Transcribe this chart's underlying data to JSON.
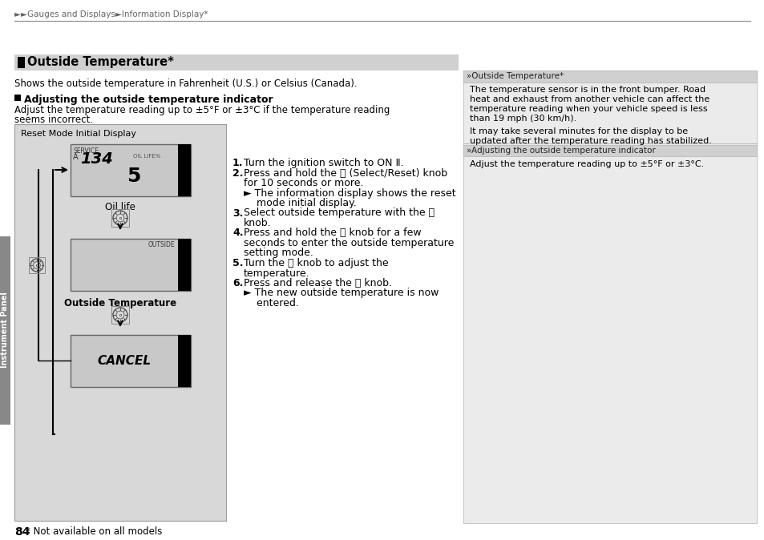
{
  "bg_color": "#ffffff",
  "breadcrumb": "►►Gauges and Displays►Information Display*",
  "section_title": "Outside Temperature*",
  "section_title_bg": "#d0d0d0",
  "section_desc": "Shows the outside temperature in Fahrenheit (U.S.) or Celsius (Canada).",
  "subsection_title": "Adjusting the outside temperature indicator",
  "subsection_desc_line1": "Adjust the temperature reading up to ±5°F or ±3°C if the temperature reading",
  "subsection_desc_line2": "seems incorrect.",
  "diagram_label": "Reset Mode Initial Display",
  "oil_life_label": "Oil life",
  "outside_temp_label": "Outside Temperature",
  "display1_service": "SERVICE",
  "display1_a": "A",
  "display1_134": "134",
  "display1_oil": "OIL LIFE%",
  "display1_val": "5",
  "display2_label": "OUTSIDE",
  "display3_text": "CANCEL",
  "steps": [
    {
      "num": "1.",
      "text": "Turn the ignition switch to ON Ⅱ."
    },
    {
      "num": "2.",
      "text": "Press and hold the ⓞ (Select/Reset) knob"
    },
    {
      "num": "",
      "text": "for 10 seconds or more."
    },
    {
      "num": "",
      "text": "► The information display shows the reset"
    },
    {
      "num": "",
      "text": "    mode initial display."
    },
    {
      "num": "3.",
      "text": "Select outside temperature with the ⓞ"
    },
    {
      "num": "",
      "text": "knob."
    },
    {
      "num": "4.",
      "text": "Press and hold the ⓞ knob for a few"
    },
    {
      "num": "",
      "text": "seconds to enter the outside temperature"
    },
    {
      "num": "",
      "text": "setting mode."
    },
    {
      "num": "5.",
      "text": "Turn the ⓞ knob to adjust the"
    },
    {
      "num": "",
      "text": "temperature."
    },
    {
      "num": "6.",
      "text": "Press and release the ⓞ knob."
    },
    {
      "num": "",
      "text": "► The new outside temperature is now"
    },
    {
      "num": "",
      "text": "    entered."
    }
  ],
  "right_bg": "#ebebeb",
  "right_header1": "»Outside Temperature*",
  "right_text1a": "The temperature sensor is in the front bumper. Road",
  "right_text1b": "heat and exhaust from another vehicle can affect the",
  "right_text1c": "temperature reading when your vehicle speed is less",
  "right_text1d": "than 19 mph (30 km/h).",
  "right_text2a": "It may take several minutes for the display to be",
  "right_text2b": "updated after the temperature reading has stabilized.",
  "right_header2": "»Adjusting the outside temperature indicator",
  "right_text3": "Adjust the temperature reading up to ±5°F or ±3°C.",
  "page_number": "84",
  "footnote": "* Not available on all models",
  "side_tab": "Instrument Panel",
  "diag_bg": "#d8d8d8",
  "diag_border": "#999999",
  "display_bg": "#c8c8c8",
  "display_border": "#666666"
}
